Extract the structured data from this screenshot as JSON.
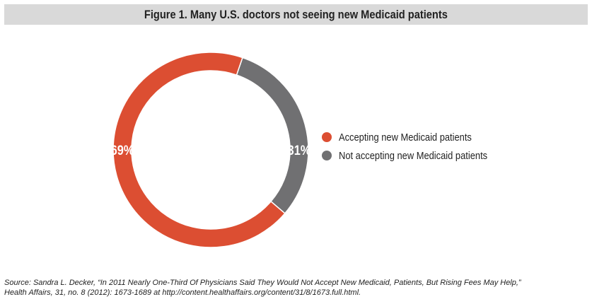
{
  "title": "Figure 1. Many U.S. doctors not seeing new Medicaid patients",
  "chart_data": {
    "type": "pie",
    "variant": "donut",
    "slices": [
      {
        "label": "Accepting new Medicaid patients",
        "value": 69,
        "display": "69%",
        "color": "#dc4e32"
      },
      {
        "label": "Not accepting new Medicaid patients",
        "value": 31,
        "display": "31%",
        "color": "#707072"
      }
    ],
    "legend_position": "right"
  },
  "source": {
    "line1": "Source: Sandra L. Decker, “In 2011 Nearly One-Third Of Physicians Said They Would Not Accept New Medicaid, Patients, But Rising Fees May Help,”",
    "line2": "Health Affairs, 31, no. 8 (2012): 1673-1689 at http://content.healthaffairs.org/content/31/8/1673.full.html."
  }
}
